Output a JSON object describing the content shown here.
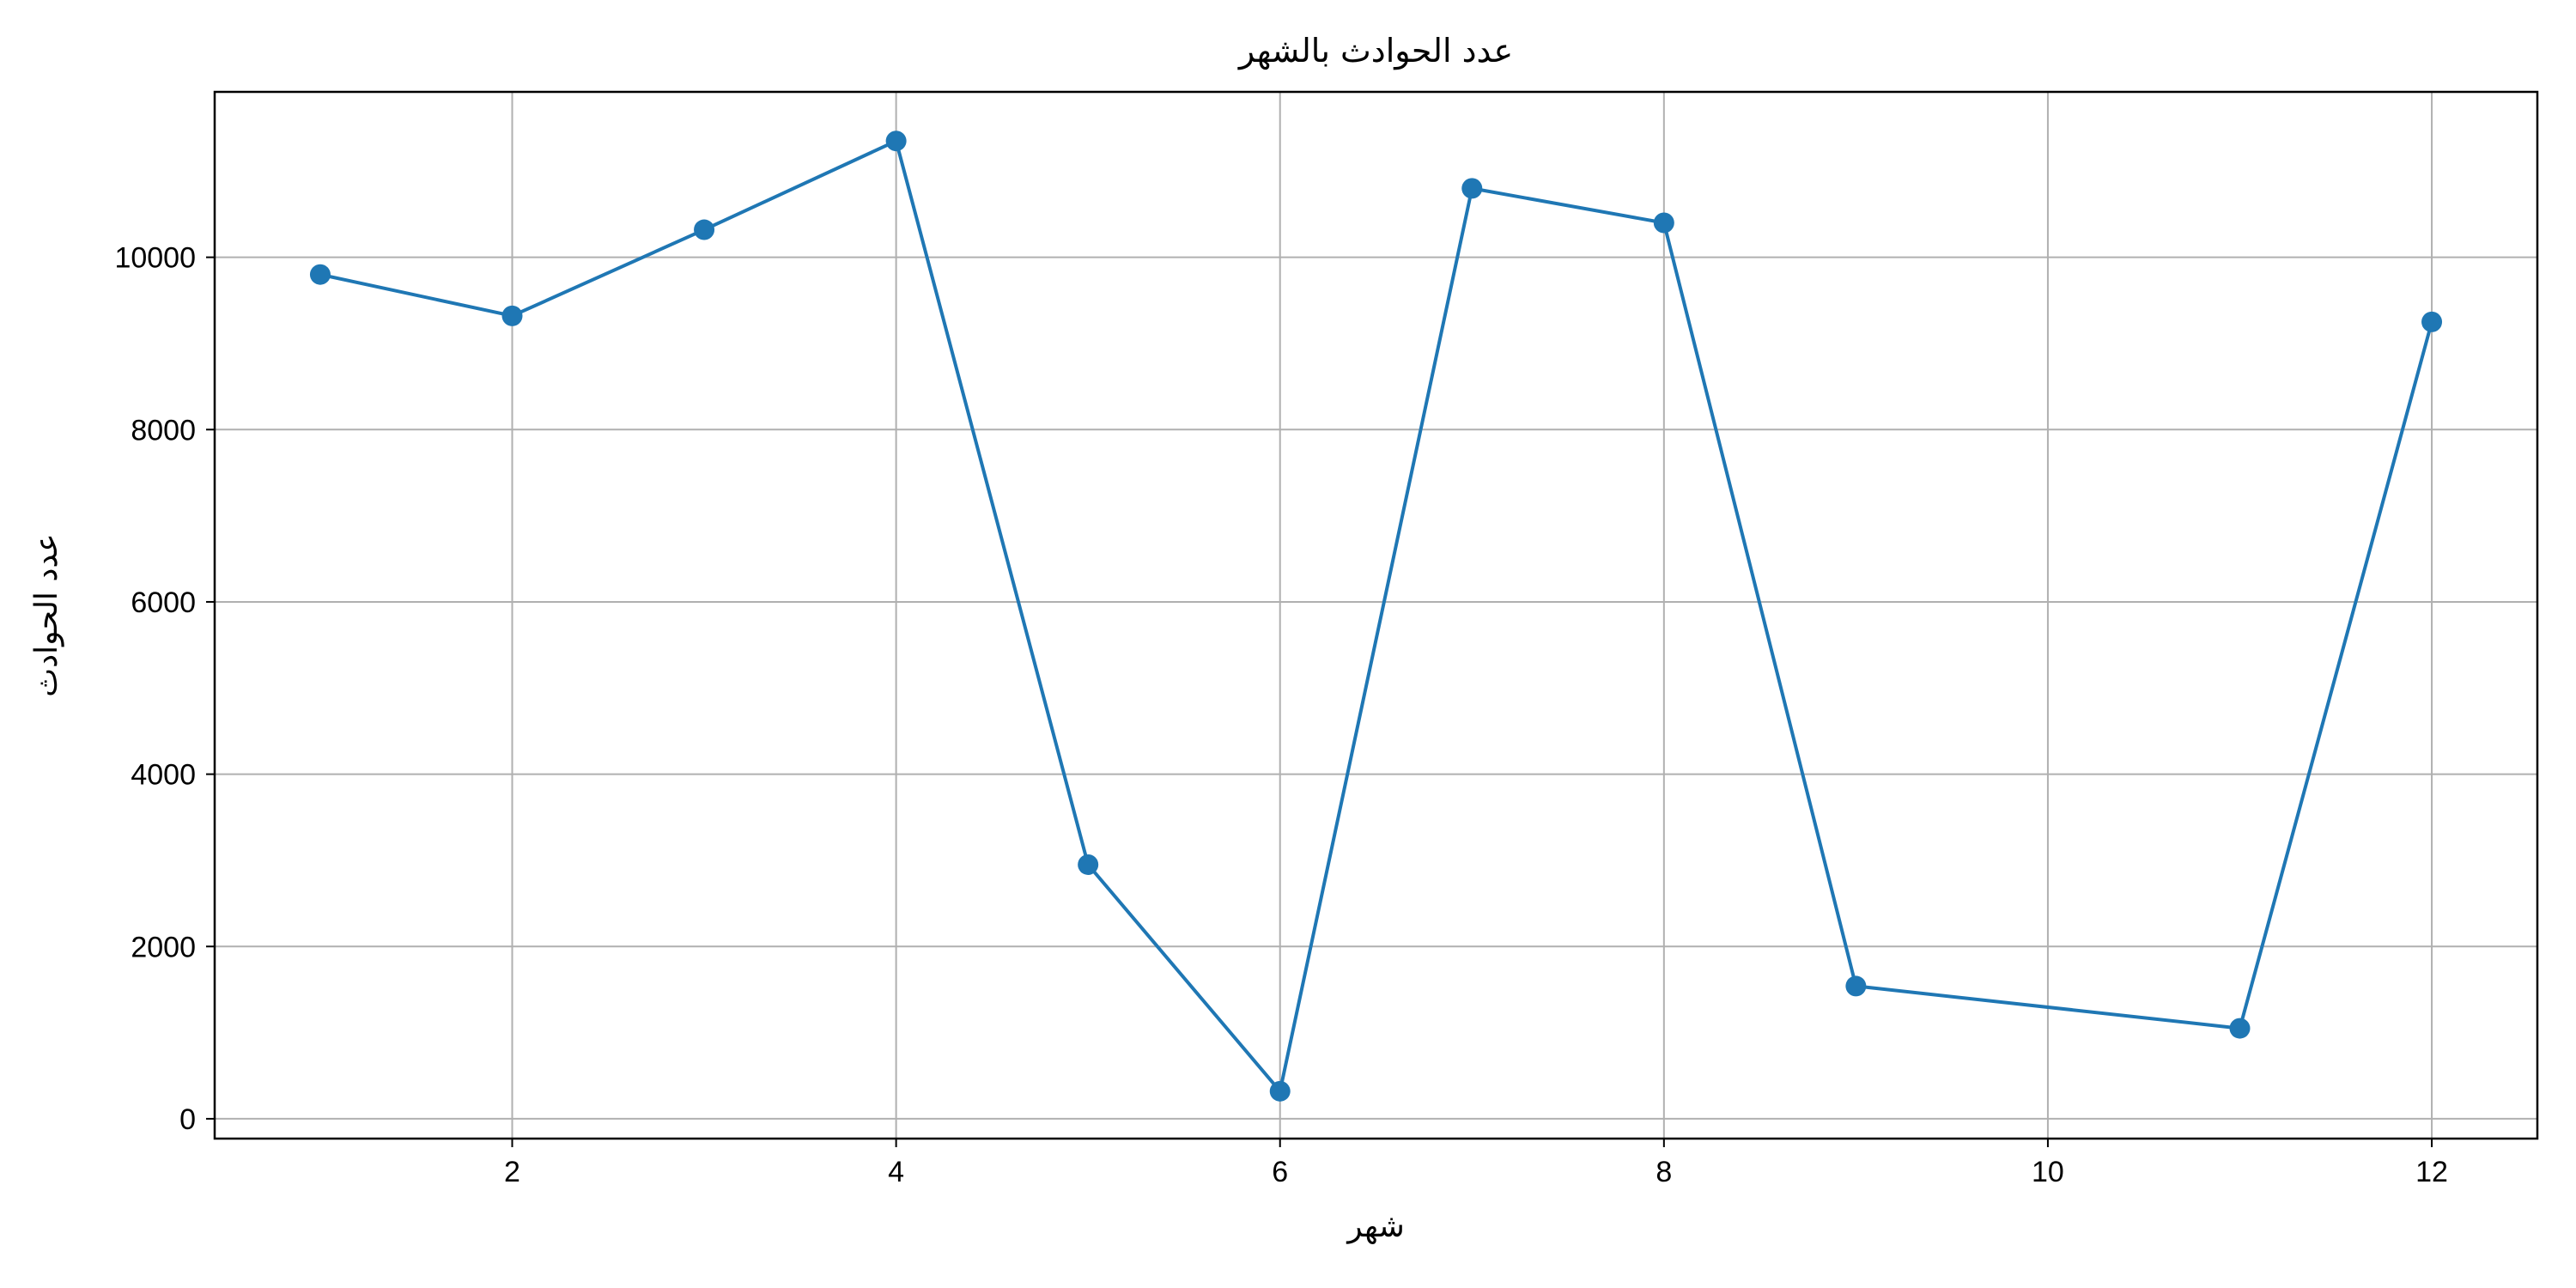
{
  "chart_data": {
    "type": "line",
    "title": "عدد الحوادث بالشهر",
    "xlabel": "شهر",
    "ylabel": "عدد الحوادث",
    "x": [
      1,
      2,
      3,
      4,
      5,
      6,
      7,
      8,
      9,
      11,
      12
    ],
    "series": [
      {
        "values": [
          9800,
          9320,
          10320,
          11350,
          2950,
          320,
          10800,
          10400,
          1540,
          1050,
          9250
        ],
        "color": "#1f77b4",
        "marker": "circle"
      }
    ],
    "xlim": [
      0.45,
      12.55
    ],
    "ylim": [
      -230,
      11920
    ],
    "xticks": [
      2,
      4,
      6,
      8,
      10,
      12
    ],
    "yticks": [
      0,
      2000,
      4000,
      6000,
      8000,
      10000
    ],
    "grid": true,
    "legend": "none"
  }
}
